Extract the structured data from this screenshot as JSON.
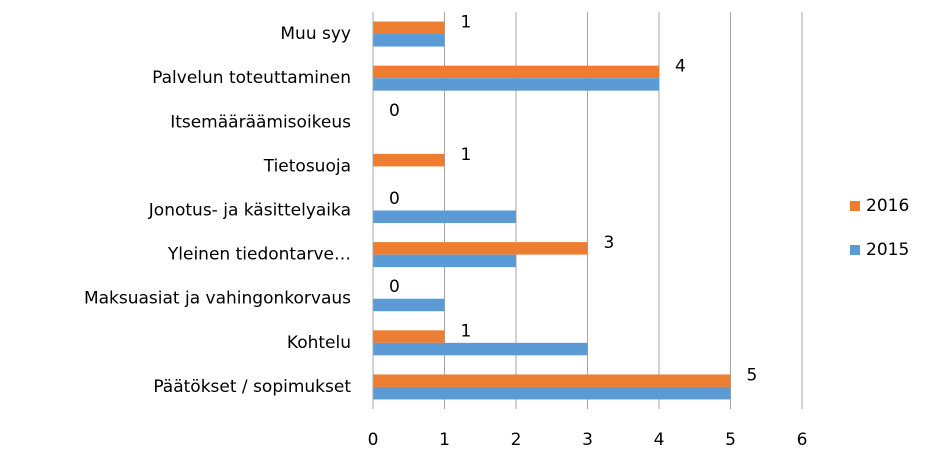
{
  "chart_data": {
    "type": "hbar",
    "categories": [
      "Muu syy",
      "Palvelun toteuttaminen",
      "Itsemääräämisoikeus",
      "Tietosuoja",
      "Jonotus- ja käsittelyaika",
      "Yleinen tiedontarve…",
      "Maksuasiat ja vahingonkorvaus",
      "Kohtelu",
      "Päätökset / sopimukset"
    ],
    "series": [
      {
        "name": "2016",
        "color": "#ed7d31",
        "values": [
          1,
          4,
          0,
          1,
          0,
          3,
          0,
          1,
          5
        ]
      },
      {
        "name": "2015",
        "color": "#5b9bd5",
        "values": [
          1,
          4,
          0,
          0,
          2,
          2,
          1,
          3,
          5
        ]
      }
    ],
    "xlim": [
      0,
      6
    ],
    "xticks": [
      0,
      1,
      2,
      3,
      4,
      5,
      6
    ],
    "grid": true,
    "legend": "right"
  }
}
